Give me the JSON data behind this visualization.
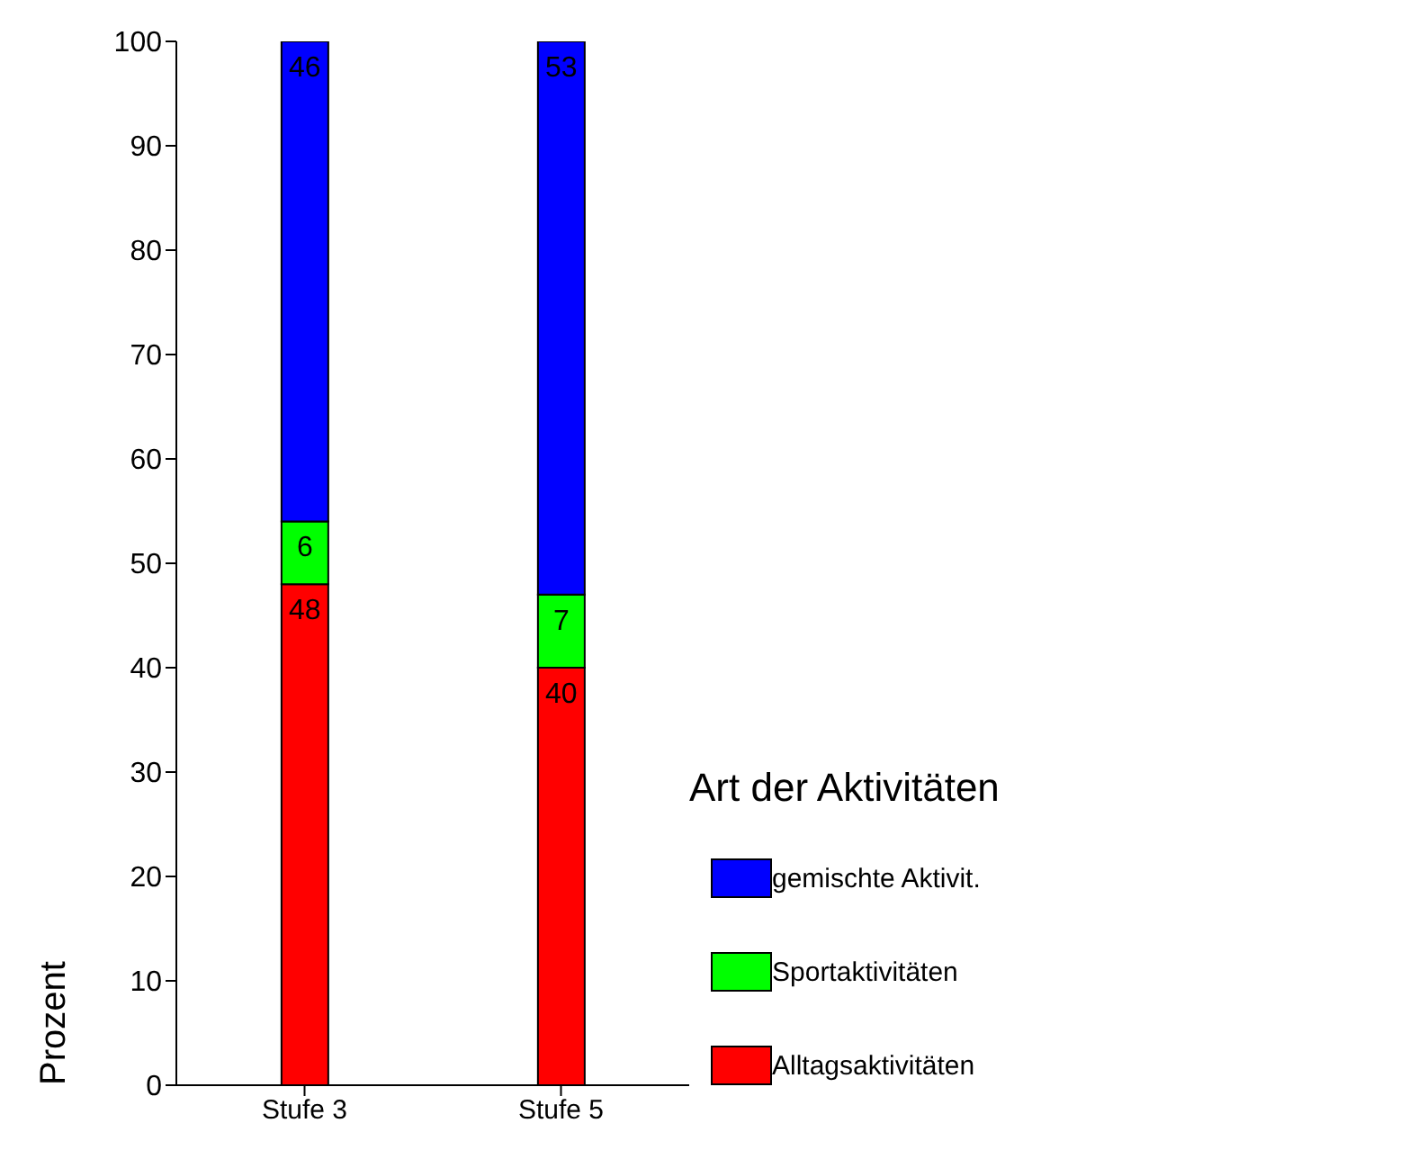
{
  "chart_data": {
    "type": "bar",
    "stacked": true,
    "categories": [
      "Stufe 3",
      "Stufe 5"
    ],
    "series": [
      {
        "name": "Alltagsaktivitäten",
        "color": "#ff0000",
        "values": [
          48,
          40
        ]
      },
      {
        "name": "Sportaktivitäten",
        "color": "#00ff00",
        "values": [
          6,
          7
        ]
      },
      {
        "name": "gemischte Aktivit.",
        "color": "#0000ff",
        "values": [
          46,
          53
        ]
      }
    ],
    "ylabel": "Prozent",
    "legend_title": "Art der Aktivitäten",
    "legend": "bottom right",
    "data_labels": true,
    "grid": false,
    "ylim": [
      0,
      100
    ],
    "yticks": [
      0,
      10,
      20,
      30,
      40,
      50,
      60,
      70,
      80,
      90,
      100
    ]
  }
}
